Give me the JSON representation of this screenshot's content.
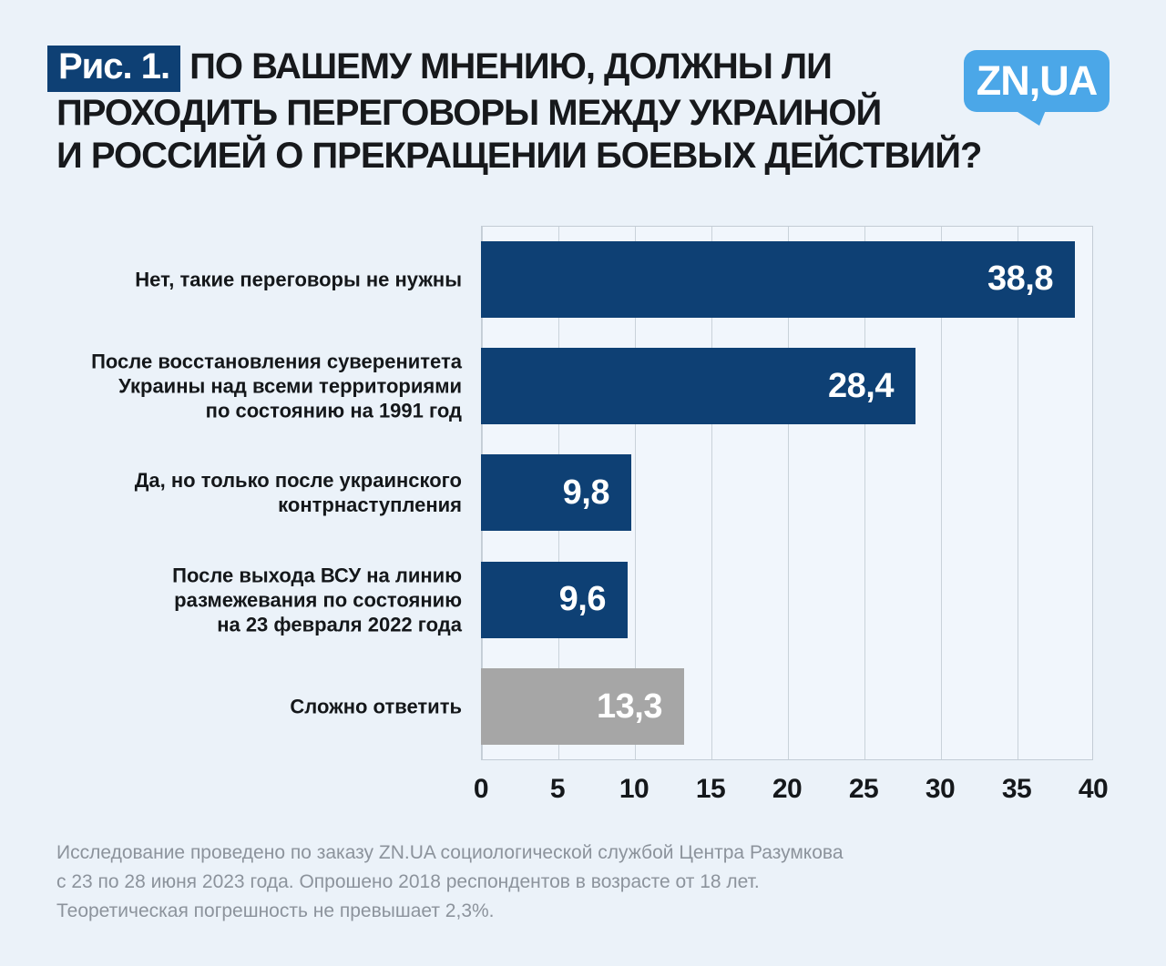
{
  "figure_label": "Рис. 1.",
  "title_lines": [
    "ПО ВАШЕМУ МНЕНИЮ, ДОЛЖНЫ ЛИ",
    "ПРОХОДИТЬ ПЕРЕГОВОРЫ МЕЖДУ УКРАИНОЙ",
    "И РОССИЕЙ О ПРЕКРАЩЕНИИ БОЕВЫХ ДЕЙСТВИЙ?"
  ],
  "logo_text": "ZN,UA",
  "chart_data": {
    "type": "bar",
    "orientation": "horizontal",
    "title": "По вашему мнению, должны ли проходить переговоры между Украиной и Россией о прекращении боевых действий?",
    "categories": [
      "Нет, такие переговоры не нужны",
      "После восстановления суверенитета Украины над всеми территориями по состоянию на 1991 год",
      "Да, но только после украинского контрнаступления",
      "После выхода ВСУ на линию размежевания по состоянию на 23 февраля 2022 года",
      "Сложно ответить"
    ],
    "category_display": [
      "Нет, такие переговоры не нужны",
      "После восстановления суверенитета\nУкраины над всеми территориями\nпо состоянию на 1991 год",
      "Да, но только после украинского\nконтрнаступления",
      "После выхода ВСУ на линию\nразмежевания по состоянию\nна 23 февраля 2022 года",
      "Сложно ответить"
    ],
    "values": [
      38.8,
      28.4,
      9.8,
      9.6,
      13.3
    ],
    "value_labels": [
      "38,8",
      "28,4",
      "9,8",
      "9,6",
      "13,3"
    ],
    "unit": "%",
    "xlim": [
      0,
      40
    ],
    "xticks": [
      0,
      5,
      10,
      15,
      20,
      25,
      30,
      35,
      40
    ],
    "grid": "vertical",
    "legend": "none",
    "bar_colors": [
      "#0e4074",
      "#0e4074",
      "#0e4074",
      "#0e4074",
      "#a6a6a6"
    ]
  },
  "footnote": "Исследование проведено по заказу ZN.UA социологической службой Центра Разумкова\nс 23 по 28 июня 2023 года. Опрошено 2018 респондентов в возрасте от 18 лет.\nТеоретическая погрешность не превышает 2,3%.",
  "colors": {
    "page_background": "#ebf2f9",
    "plot_background": "#f1f6fc",
    "gridline": "#c9d2da",
    "bar_primary": "#0e4074",
    "bar_neutral": "#a6a6a6",
    "badge_background": "#0e4074",
    "logo_blue": "#4ba7e8",
    "title_text": "#17191c",
    "footnote_text": "#8c939c"
  }
}
